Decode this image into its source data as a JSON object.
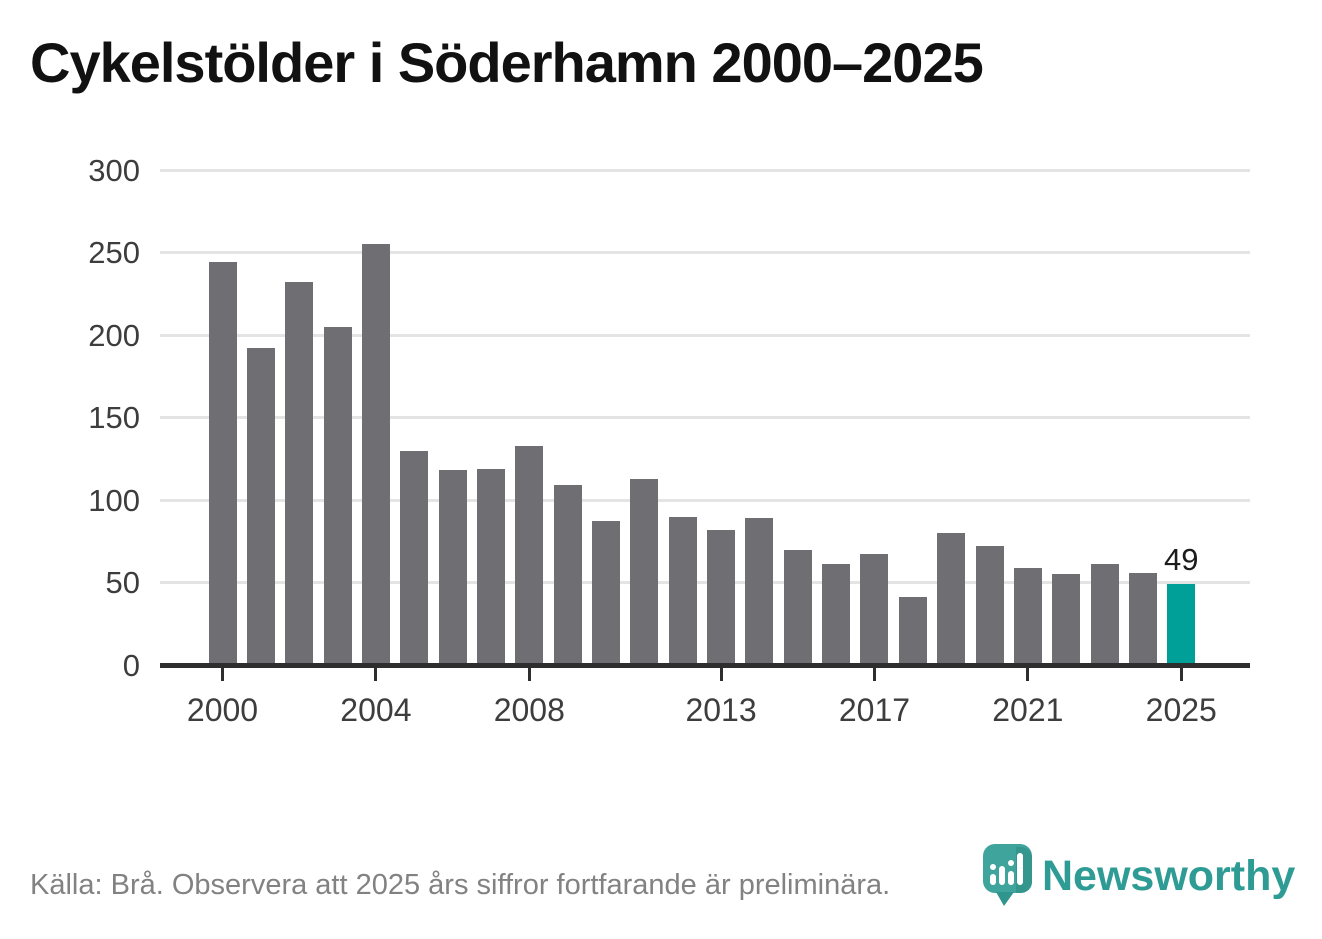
{
  "title": "Cykelstölder i Söderhamn 2000–2025",
  "source_note": "Källa: Brå. Observera att 2025 års siffror fortfarande är preliminära.",
  "logo": {
    "text": "Newsworthy",
    "icon": "bar-chart-bubble-icon"
  },
  "colors": {
    "bar": "#6e6e73",
    "highlight": "#00a099",
    "gridline": "#e4e4e4",
    "axis": "#2e2e2e",
    "tick_label": "#3d3d3d",
    "title": "#111111",
    "source_text": "#828282",
    "logo_teal": "#2e9c94",
    "logo_icon_teal": "#3fa49b"
  },
  "chart_data": {
    "type": "bar",
    "title": "Cykelstölder i Söderhamn 2000–2025",
    "categories": [
      2000,
      2001,
      2002,
      2003,
      2004,
      2005,
      2006,
      2007,
      2008,
      2009,
      2010,
      2011,
      2012,
      2013,
      2014,
      2015,
      2016,
      2017,
      2018,
      2019,
      2020,
      2021,
      2022,
      2023,
      2024,
      2025
    ],
    "values": [
      244,
      192,
      232,
      205,
      255,
      130,
      118,
      119,
      133,
      109,
      87,
      113,
      90,
      82,
      89,
      70,
      61,
      67,
      41,
      80,
      72,
      59,
      55,
      61,
      56,
      49
    ],
    "highlight_year": 2025,
    "value_label": {
      "year": 2025,
      "text": "49"
    },
    "xlabel": "",
    "ylabel": "",
    "ylim": [
      0,
      300
    ],
    "yticks": [
      0,
      50,
      100,
      150,
      200,
      250,
      300
    ],
    "xtick_labels": [
      "2000",
      "2004",
      "2008",
      "2013",
      "2017",
      "2021",
      "2025"
    ],
    "xtick_years": [
      2000,
      2004,
      2008,
      2013,
      2017,
      2021,
      2025
    ],
    "grid": true,
    "legend": "none"
  }
}
